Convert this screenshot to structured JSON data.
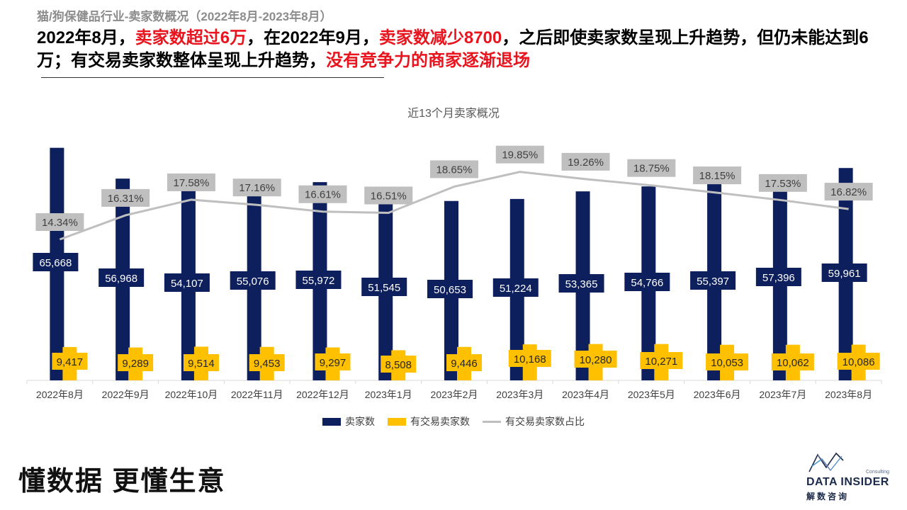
{
  "header": {
    "subtitle": "猫/狗保健品行业-卖家数概况（2022年8月-2023年8月）",
    "headline_parts": [
      {
        "text": "2022年8月，",
        "red": false
      },
      {
        "text": "卖家数超过6万",
        "red": true
      },
      {
        "text": "，在2022年9月，",
        "red": false
      },
      {
        "text": "卖家数减少8700",
        "red": true
      },
      {
        "text": "，之后即使卖家数呈现上升趋势，但仍未能达到6万；有交易卖家数整体呈现上升趋势，",
        "red": false
      },
      {
        "text": "没有竞争力的商家逐渐退场",
        "red": true
      }
    ]
  },
  "colors": {
    "navy": "#0d1f5c",
    "yellow": "#ffc000",
    "gray": "#bfbfbf",
    "red": "#e8141e"
  },
  "chart_data": {
    "type": "bar",
    "title": "近13个月卖家概况",
    "categories": [
      "2022年8月",
      "2022年9月",
      "2022年10月",
      "2022年11月",
      "2022年12月",
      "2023年1月",
      "2023年2月",
      "2023年3月",
      "2023年4月",
      "2023年5月",
      "2023年6月",
      "2023年7月",
      "2023年8月"
    ],
    "series": [
      {
        "name": "卖家数",
        "kind": "bar",
        "values": [
          65668,
          56968,
          54107,
          55076,
          55972,
          51545,
          50653,
          51224,
          53365,
          54766,
          55397,
          57396,
          59961
        ],
        "labels": [
          "65,668",
          "56,968",
          "54,107",
          "55,076",
          "55,972",
          "51,545",
          "50,653",
          "51,224",
          "53,365",
          "54,766",
          "55,397",
          "57,396",
          "59,961"
        ]
      },
      {
        "name": "有交易卖家数",
        "kind": "bar",
        "values": [
          9417,
          9289,
          9514,
          9453,
          9297,
          8508,
          9446,
          10168,
          10280,
          10271,
          10053,
          10062,
          10086
        ],
        "labels": [
          "9,417",
          "9,289",
          "9,514",
          "9,453",
          "9,297",
          "8,508",
          "9,446",
          "10,168",
          "10,280",
          "10,271",
          "10,053",
          "10,062",
          "10,086"
        ]
      },
      {
        "name": "有交易卖家数占比",
        "kind": "line",
        "values": [
          14.34,
          16.31,
          17.58,
          17.16,
          16.61,
          16.51,
          18.65,
          19.85,
          19.26,
          18.75,
          18.15,
          17.53,
          16.82
        ],
        "labels": [
          "14.34%",
          "16.31%",
          "17.58%",
          "17.16%",
          "16.61%",
          "16.51%",
          "18.65%",
          "19.85%",
          "19.26%",
          "18.75%",
          "18.15%",
          "17.53%",
          "16.82%"
        ]
      }
    ],
    "legend_position": "bottom",
    "grid": false
  },
  "footer": {
    "slogan": "懂数据 更懂生意",
    "logo_en": "DATA INSIDER",
    "logo_cn": "解数咨询",
    "logo_small": "Consulting"
  }
}
